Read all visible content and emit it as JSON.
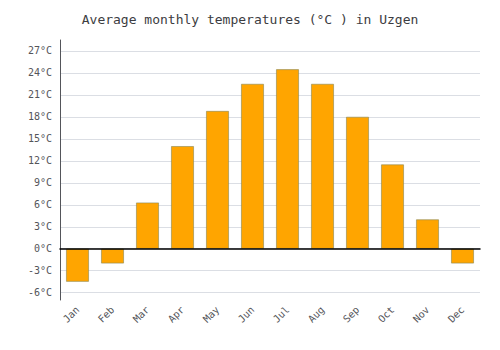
{
  "chart_data": {
    "type": "bar",
    "title": "Average monthly temperatures (°C ) in Uzgen",
    "categories": [
      "Jan",
      "Feb",
      "Mar",
      "Apr",
      "May",
      "Jun",
      "Jul",
      "Aug",
      "Sep",
      "Oct",
      "Nov",
      "Dec"
    ],
    "values": [
      -4.5,
      -2.0,
      6.3,
      14.0,
      18.8,
      22.5,
      24.5,
      22.5,
      18.0,
      11.5,
      4.0,
      -2.0
    ],
    "color": "#FFA500",
    "ylim": [
      -7,
      28.5
    ],
    "yticks": [
      {
        "value": -6,
        "label": "-6°C"
      },
      {
        "value": -3,
        "label": "-3°C"
      },
      {
        "value": 0,
        "label": "0°C"
      },
      {
        "value": 3,
        "label": "3°C"
      },
      {
        "value": 6,
        "label": "6°C"
      },
      {
        "value": 9,
        "label": "9°C"
      },
      {
        "value": 12,
        "label": "12°C"
      },
      {
        "value": 15,
        "label": "15°C"
      },
      {
        "value": 18,
        "label": "18°C"
      },
      {
        "value": 21,
        "label": "21°C"
      },
      {
        "value": 24,
        "label": "24°C"
      },
      {
        "value": 27,
        "label": "27°C"
      }
    ],
    "grid": true
  }
}
